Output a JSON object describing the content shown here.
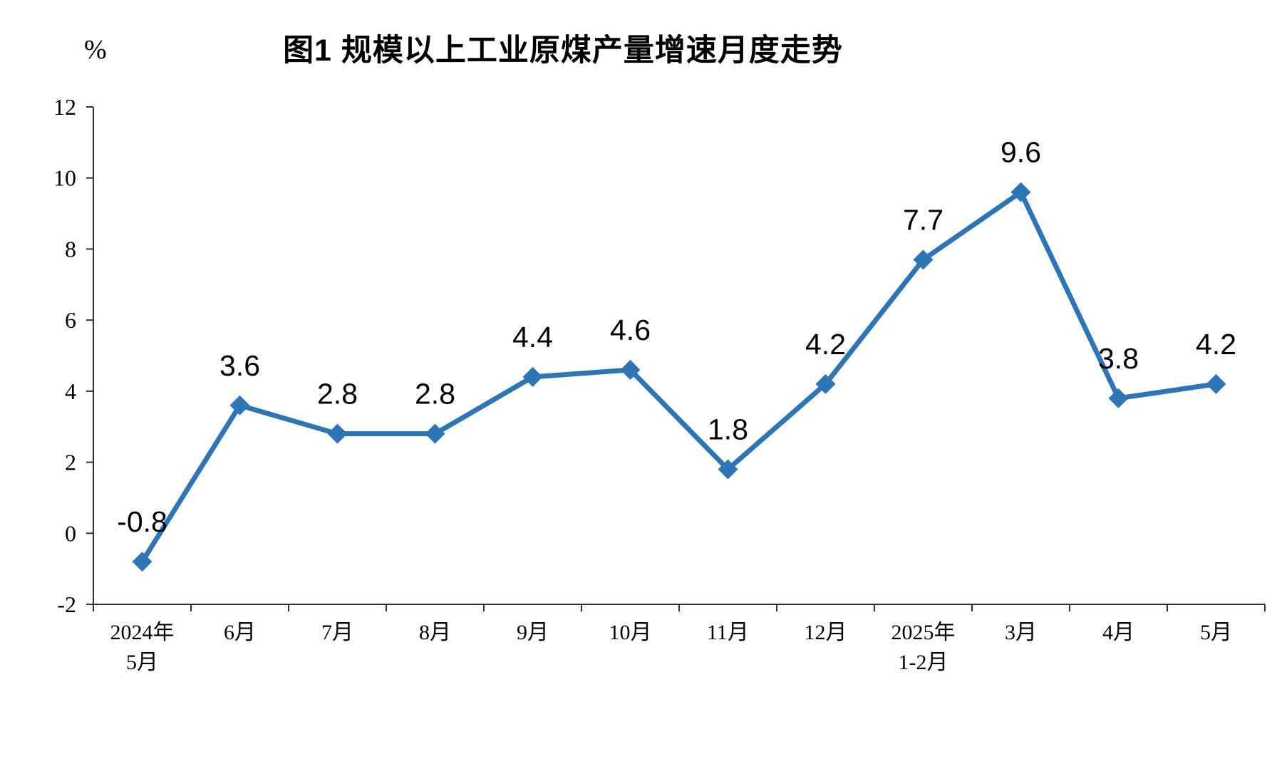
{
  "chart": {
    "title": "图1 规模以上工业原煤产量增速月度走势",
    "unit": "%"
  },
  "chart_data": {
    "type": "line",
    "title": "图1 规模以上工业原煤产量增速月度走势",
    "unit_label": "%",
    "categories": [
      "2024年\n5月",
      "6月",
      "7月",
      "8月",
      "9月",
      "10月",
      "11月",
      "12月",
      "2025年\n1-2月",
      "3月",
      "4月",
      "5月"
    ],
    "values": [
      -0.8,
      3.6,
      2.8,
      2.8,
      4.4,
      4.6,
      1.8,
      4.2,
      7.7,
      9.6,
      3.8,
      4.2
    ],
    "data_labels": [
      "-0.8",
      "3.6",
      "2.8",
      "2.8",
      "4.4",
      "4.6",
      "1.8",
      "4.2",
      "7.7",
      "9.6",
      "3.8",
      "4.2"
    ],
    "ylim": [
      -2,
      12
    ],
    "yticks": [
      -2,
      0,
      2,
      4,
      6,
      8,
      10,
      12
    ],
    "grid": false,
    "legend": "none",
    "line_color": "#2E75B6",
    "marker": "diamond",
    "axis_color": "#333333",
    "label_color": "#000000"
  }
}
